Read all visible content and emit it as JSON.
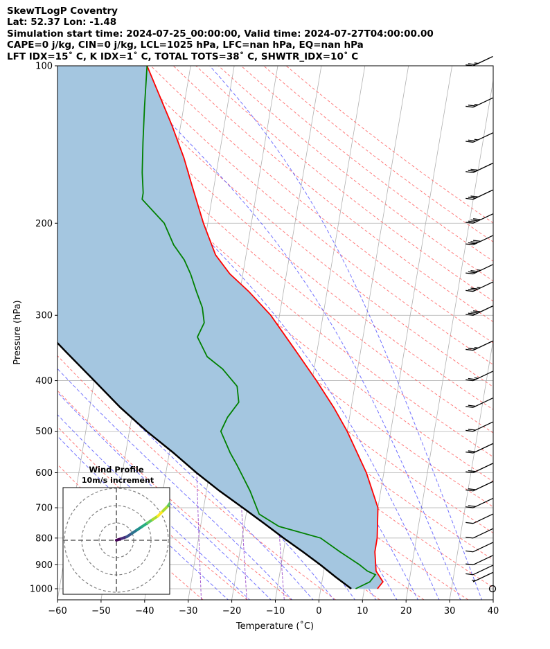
{
  "header": {
    "line1": "SkewTLogP Coventry",
    "line2": "Lat: 52.37   Lon: -1.48",
    "line3": "Simulation start time: 2024-07-25_00:00:00, Valid time: 2024-07-27T04:00:00.00",
    "line4": "CAPE=0 j/kg, CIN=0 j/kg, LCL=1025 hPa, LFC=nan hPa, EQ=nan hPa",
    "line5": "LFT IDX=15˚ C, K IDX=1˚ C, TOTAL TOTS=38˚ C, SHWTR_IDX=10˚ C"
  },
  "colors": {
    "temperature": "#ff0000",
    "dewpoint": "#008000",
    "parcel": "#000000",
    "cape_fill": "#a4c6e0",
    "isotherm": "#b0b0b0",
    "dry_adiabat": "#ff6e6e",
    "moist_adiabat": "#5a5aff",
    "mixing_ratio": "#9b4dca"
  },
  "chart_data": [
    {
      "type": "line",
      "title": "SkewTLogP Coventry",
      "xlabel": "Temperature (˚C)",
      "ylabel": "Pressure (hPa)",
      "xlim": [
        -60,
        40
      ],
      "ylim": [
        1050,
        100
      ],
      "yscale": "log",
      "skew": "skewed isotherms",
      "grid": true,
      "xticks": [
        -60,
        -50,
        -40,
        -30,
        -20,
        -10,
        0,
        10,
        20,
        30,
        40
      ],
      "yticks": [
        100,
        200,
        300,
        400,
        500,
        600,
        700,
        800,
        900,
        1000
      ],
      "series": [
        {
          "name": "temperature",
          "pressure": [
            1000,
            970,
            925,
            850,
            800,
            700,
            600,
            500,
            450,
            400,
            350,
            300,
            270,
            250,
            230,
            200,
            170,
            150,
            130,
            100
          ],
          "values": [
            13,
            14,
            12,
            11,
            11,
            10,
            6,
            0,
            -4,
            -9,
            -15,
            -22,
            -28,
            -33,
            -37,
            -41,
            -45,
            -48,
            -52,
            -60
          ]
        },
        {
          "name": "dewpoint",
          "pressure": [
            1000,
            970,
            940,
            925,
            900,
            850,
            800,
            760,
            720,
            650,
            580,
            550,
            500,
            470,
            440,
            410,
            380,
            360,
            330,
            310,
            290,
            270,
            250,
            235,
            220,
            200,
            180,
            175,
            160,
            140,
            120,
            100
          ],
          "values": [
            8,
            11,
            12,
            10,
            8,
            3,
            -2,
            -12,
            -17,
            -20,
            -24,
            -26,
            -29,
            -28,
            -26,
            -27,
            -31,
            -35,
            -38,
            -37,
            -38,
            -40,
            -42,
            -44,
            -47,
            -50,
            -56,
            -56,
            -57,
            -58,
            -59,
            -60
          ]
        },
        {
          "name": "parcel",
          "pressure": [
            1000,
            950,
            900,
            850,
            800,
            750,
            700,
            650,
            600,
            550,
            500,
            450,
            400,
            350,
            300,
            250,
            200,
            150,
            100
          ],
          "values": [
            7,
            3,
            -1,
            -5.5,
            -10.5,
            -15.5,
            -21,
            -27,
            -33,
            -39,
            -46,
            -53,
            -60,
            -68,
            -77,
            -87,
            -99,
            -115,
            -133
          ]
        }
      ],
      "wind_barbs": {
        "pressure": [
          1000,
          970,
          940,
          900,
          850,
          800,
          750,
          700,
          650,
          600,
          550,
          500,
          450,
          400,
          350,
          300,
          270,
          250,
          220,
          200,
          180,
          160,
          140,
          120,
          100
        ],
        "speed_kt": [
          0,
          5,
          10,
          10,
          10,
          10,
          10,
          20,
          20,
          20,
          20,
          20,
          20,
          25,
          25,
          40,
          35,
          35,
          40,
          40,
          30,
          30,
          25,
          25,
          25
        ]
      }
    },
    {
      "type": "line",
      "title": "Wind Profile",
      "subtitle": "10m/s increment",
      "rings_ms": [
        10,
        20,
        30
      ]
    }
  ]
}
